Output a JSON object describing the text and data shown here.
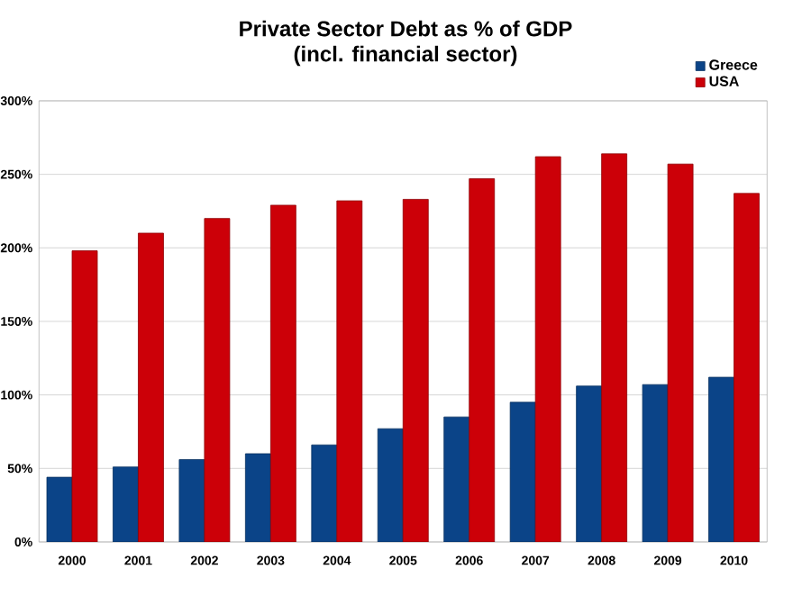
{
  "chart_data": {
    "type": "bar",
    "title": "Private Sector Debt as % of GDP\n(incl. financial sector)",
    "categories": [
      "2000",
      "2001",
      "2002",
      "2003",
      "2004",
      "2005",
      "2006",
      "2007",
      "2008",
      "2009",
      "2010"
    ],
    "series": [
      {
        "name": "Greece",
        "color": "#0b4488",
        "values": [
          44,
          51,
          56,
          60,
          66,
          77,
          85,
          95,
          106,
          107,
          112
        ]
      },
      {
        "name": "USA",
        "color": "#cc0008",
        "values": [
          198,
          210,
          220,
          229,
          232,
          233,
          247,
          262,
          264,
          257,
          237
        ]
      }
    ],
    "ylim": [
      0,
      300
    ],
    "yticks": [
      {
        "value": 0,
        "label": "0%"
      },
      {
        "value": 50,
        "label": "50%"
      },
      {
        "value": 100,
        "label": "100%"
      },
      {
        "value": 150,
        "label": "150%"
      },
      {
        "value": 200,
        "label": "200%"
      },
      {
        "value": 250,
        "label": "250%"
      },
      {
        "value": 300,
        "label": "300%"
      }
    ],
    "grid": "y",
    "legend": "top right"
  }
}
